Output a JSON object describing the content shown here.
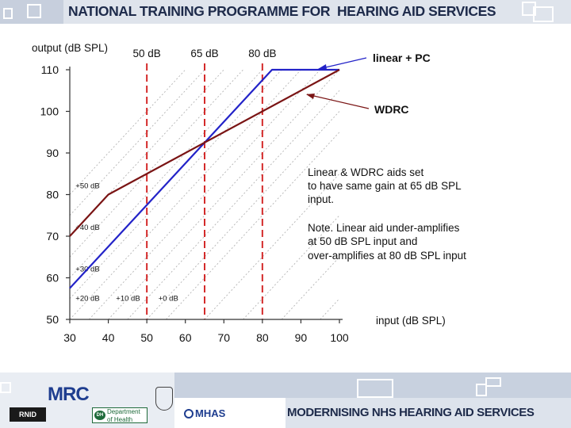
{
  "header": {
    "title": "NATIONAL TRAINING PROGRAMME FOR  HEARING AID SERVICES"
  },
  "footer": {
    "slogan": "MODERNISING NHS HEARING AID SERVICES"
  },
  "chart_data": {
    "type": "line",
    "ylabel": "output (dB SPL)",
    "xlabel": "input (dB SPL)",
    "xlim": [
      30,
      100
    ],
    "ylim": [
      50,
      110
    ],
    "xticks": [
      30,
      40,
      50,
      60,
      70,
      80,
      90,
      100
    ],
    "yticks": [
      50,
      60,
      70,
      80,
      90,
      100,
      110
    ],
    "series": [
      {
        "name": "linear + PC",
        "color": "#2323c8",
        "x": [
          30,
          82.5,
          100
        ],
        "y": [
          57.5,
          110,
          110
        ]
      },
      {
        "name": "WDRC",
        "color": "#7a1414",
        "x": [
          30,
          40,
          100
        ],
        "y": [
          70,
          80,
          110
        ]
      }
    ],
    "vlines": [
      {
        "x": 50,
        "label": "50 dB"
      },
      {
        "x": 65,
        "label": "65 dB"
      },
      {
        "x": 80,
        "label": "80 dB"
      }
    ],
    "gain_lines": [
      {
        "offset": 50,
        "label": "+50 dB",
        "lx": 31.5,
        "ly": 81.5
      },
      {
        "offset": 40,
        "label": "+40 dB",
        "lx": 31.5,
        "ly": 71.5
      },
      {
        "offset": 30,
        "label": "+30 dB",
        "lx": 31.5,
        "ly": 61.5
      },
      {
        "offset": 20,
        "label": "+20 dB",
        "lx": 31.5,
        "ly": 54.5
      },
      {
        "offset": 10,
        "label": "+10 dB",
        "lx": 42,
        "ly": 54.5
      },
      {
        "offset": 0,
        "label": "+0 dB",
        "lx": 53,
        "ly": 54.5
      }
    ],
    "gain_line_offsets": [
      45,
      35,
      25,
      15,
      5,
      -5,
      -15,
      -25,
      -35,
      -45
    ],
    "annotations": {
      "note1": [
        "Linear & WDRC aids set",
        "to have same gain at 65 dB SPL",
        "input."
      ],
      "note2": [
        "Note. Linear aid under-amplifies",
        "at 50 dB SPL input and",
        "over-amplifies at 80 dB SPL input"
      ]
    },
    "grid": false,
    "legend": "right (arrow callouts)"
  }
}
